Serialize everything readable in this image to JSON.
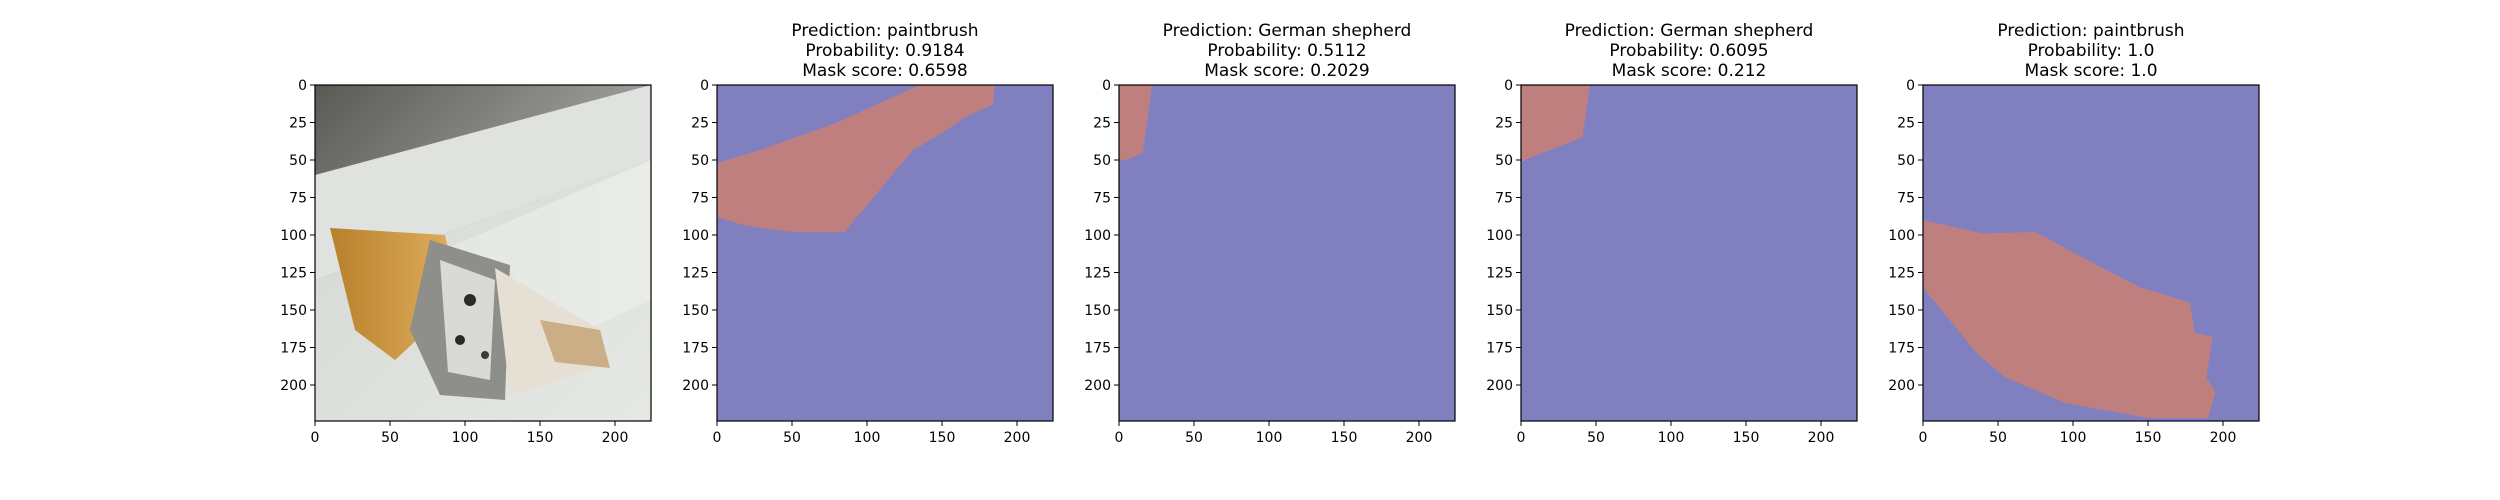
{
  "chart_data": [
    {
      "type": "image",
      "title": [],
      "content": "photo",
      "xticks": [
        "0",
        "50",
        "100",
        "150",
        "200"
      ],
      "yticks": [
        "0",
        "25",
        "50",
        "75",
        "100",
        "125",
        "150",
        "175",
        "200"
      ],
      "xlim": [
        0,
        224
      ],
      "ylim": [
        224,
        0
      ]
    },
    {
      "type": "heatmap",
      "title": [
        "Prediction: paintbrush",
        "Probability: 0.9184",
        "Mask score: 0.6598"
      ],
      "prediction": "paintbrush",
      "probability": 0.9184,
      "mask_score": 0.6598,
      "xticks": [
        "0",
        "50",
        "100",
        "150",
        "200"
      ],
      "yticks": [
        "0",
        "25",
        "50",
        "75",
        "100",
        "125",
        "150",
        "175",
        "200"
      ],
      "xlim": [
        0,
        224
      ],
      "ylim": [
        224,
        0
      ],
      "mask_polygon": [
        [
          0,
          52
        ],
        [
          30,
          43
        ],
        [
          80,
          25
        ],
        [
          135,
          0
        ],
        [
          185,
          0
        ],
        [
          184,
          13
        ],
        [
          168,
          20
        ],
        [
          150,
          32
        ],
        [
          130,
          44
        ],
        [
          110,
          68
        ],
        [
          85,
          98
        ],
        [
          75,
          98
        ],
        [
          50,
          98
        ],
        [
          20,
          94
        ],
        [
          0,
          88
        ]
      ]
    },
    {
      "type": "heatmap",
      "title": [
        "Prediction: German shepherd",
        "Probability: 0.5112",
        "Mask score: 0.2029"
      ],
      "prediction": "German shepherd",
      "probability": 0.5112,
      "mask_score": 0.2029,
      "xticks": [
        "0",
        "50",
        "100",
        "150",
        "200"
      ],
      "yticks": [
        "0",
        "25",
        "50",
        "75",
        "100",
        "125",
        "150",
        "175",
        "200"
      ],
      "xlim": [
        0,
        224
      ],
      "ylim": [
        224,
        0
      ],
      "mask_polygon": [
        [
          0,
          0
        ],
        [
          22,
          0
        ],
        [
          16,
          45
        ],
        [
          10,
          48
        ],
        [
          0,
          51
        ]
      ]
    },
    {
      "type": "heatmap",
      "title": [
        "Prediction: German shepherd",
        "Probability: 0.6095",
        "Mask score: 0.212"
      ],
      "prediction": "German shepherd",
      "probability": 0.6095,
      "mask_score": 0.212,
      "xticks": [
        "0",
        "50",
        "100",
        "150",
        "200"
      ],
      "yticks": [
        "0",
        "25",
        "50",
        "75",
        "100",
        "125",
        "150",
        "175",
        "200"
      ],
      "xlim": [
        0,
        224
      ],
      "ylim": [
        224,
        0
      ],
      "mask_polygon": [
        [
          0,
          0
        ],
        [
          46,
          0
        ],
        [
          41,
          35
        ],
        [
          20,
          43
        ],
        [
          0,
          51
        ]
      ]
    },
    {
      "type": "heatmap",
      "title": [
        "Prediction: paintbrush",
        "Probability: 1.0",
        "Mask score: 1.0"
      ],
      "prediction": "paintbrush",
      "probability": 1.0,
      "mask_score": 1.0,
      "xticks": [
        "0",
        "50",
        "100",
        "150",
        "200"
      ],
      "yticks": [
        "0",
        "25",
        "50",
        "75",
        "100",
        "125",
        "150",
        "175",
        "200"
      ],
      "xlim": [
        0,
        224
      ],
      "ylim": [
        224,
        0
      ],
      "mask_polygon": [
        [
          0,
          90
        ],
        [
          40,
          99
        ],
        [
          75,
          98
        ],
        [
          110,
          117
        ],
        [
          145,
          135
        ],
        [
          178,
          145
        ],
        [
          181,
          165
        ],
        [
          193,
          168
        ],
        [
          189,
          195
        ],
        [
          195,
          205
        ],
        [
          190,
          222
        ],
        [
          150,
          222
        ],
        [
          95,
          212
        ],
        [
          55,
          195
        ],
        [
          35,
          178
        ],
        [
          23,
          163
        ],
        [
          0,
          135
        ]
      ]
    }
  ],
  "colors": {
    "mask_background": "#8080c0",
    "mask_foreground": "#c07f7f"
  }
}
